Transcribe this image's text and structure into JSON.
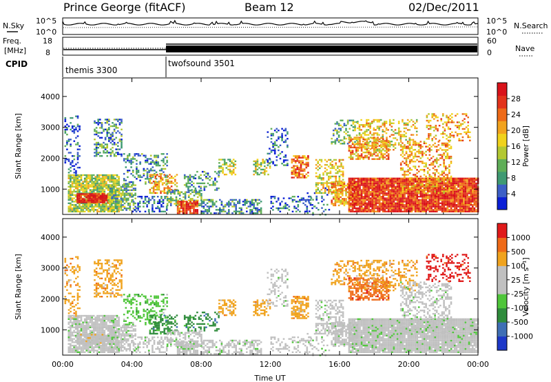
{
  "header": {
    "station": "Prince George (fitACF)",
    "beam": "Beam 12",
    "date": "02/Dec/2011"
  },
  "noise_panel": {
    "left_label": "N.Sky",
    "right_label": "N.Search",
    "y_ticks_left": [
      "10^5",
      "10^0"
    ],
    "y_ticks_right": [
      "10^5",
      "10^0"
    ]
  },
  "freq_panel": {
    "left_label_top": "Freq.",
    "left_label_bottom": "[MHz]",
    "right_label": "Nave",
    "y_ticks_left": [
      "18",
      "8"
    ],
    "y_ticks_right": [
      "60",
      "0"
    ]
  },
  "cpid_panel": {
    "label": "CPID",
    "modes": [
      {
        "name": "themis 3300",
        "start_hour": 0,
        "end_hour": 6
      },
      {
        "name": "twofsound 3501",
        "start_hour": 6,
        "end_hour": 24
      }
    ]
  },
  "chart_data": [
    {
      "type": "heatmap",
      "quantity": "Power",
      "ylabel": "Slant Range [km]",
      "xlabel": "",
      "ylim": [
        180,
        4600
      ],
      "xlim": [
        0,
        24
      ],
      "y_ticks": [
        "1000",
        "2000",
        "3000",
        "4000"
      ],
      "colorbar": {
        "label": "Power [dB]",
        "ticks": [
          "4",
          "8",
          "12",
          "16",
          "20",
          "24",
          "28"
        ],
        "colors": [
          "#0b1fd6",
          "#3c5fc6",
          "#3f9a73",
          "#5fae58",
          "#b3c832",
          "#f0d21c",
          "#f2a31e",
          "#ee6a18",
          "#e3331b",
          "#d9121a"
        ]
      }
    },
    {
      "type": "heatmap",
      "quantity": "Velocity",
      "ylabel": "Slant Range [km]",
      "xlabel": "Time UT",
      "ylim": [
        180,
        4600
      ],
      "xlim": [
        0,
        24
      ],
      "y_ticks": [
        "1000",
        "2000",
        "3000",
        "4000"
      ],
      "x_ticks": [
        "00:00",
        "04:00",
        "08:00",
        "12:00",
        "16:00",
        "20:00",
        "00:00"
      ],
      "colorbar": {
        "label": "Velocity [m s⁻¹]",
        "ticks": [
          "1000",
          "500",
          "100",
          "25",
          "-25",
          "-100",
          "-500",
          "-1000"
        ],
        "colors": [
          "#1d38c8",
          "#3f6fb5",
          "#2f8c3c",
          "#4fc63a",
          "#c0c0c0",
          "#c0c0c0",
          "#f0a31e",
          "#ef6a18",
          "#e01a1a"
        ]
      }
    }
  ]
}
